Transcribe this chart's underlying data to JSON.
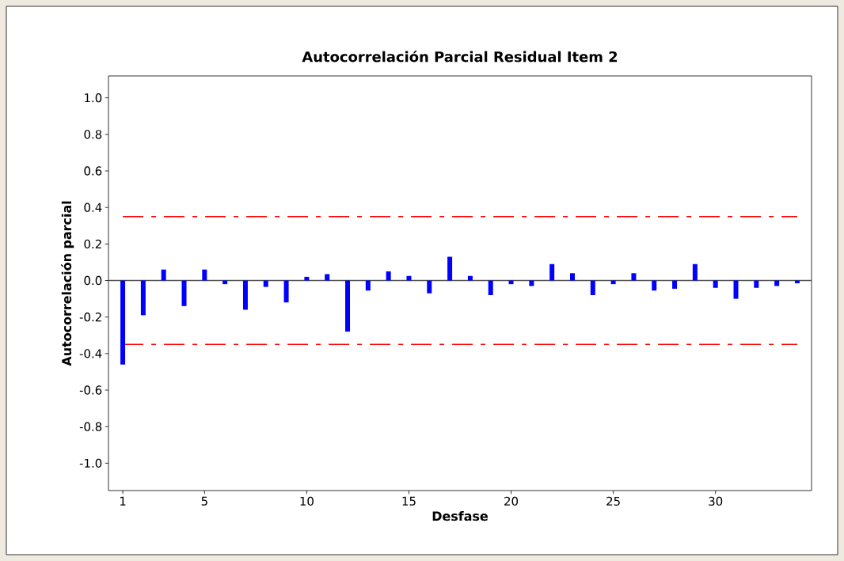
{
  "chart_data": {
    "type": "bar",
    "title": "Autocorrelación Parcial Residual Item 2",
    "xlabel": "Desfase",
    "ylabel": "Autocorrelación parcial",
    "x": [
      1,
      2,
      3,
      4,
      5,
      6,
      7,
      8,
      9,
      10,
      11,
      12,
      13,
      14,
      15,
      16,
      17,
      18,
      19,
      20,
      21,
      22,
      23,
      24,
      25,
      26,
      27,
      28,
      29,
      30,
      31,
      32,
      33,
      34
    ],
    "values": [
      -0.46,
      -0.19,
      0.06,
      -0.14,
      0.06,
      -0.02,
      -0.16,
      -0.035,
      -0.12,
      0.02,
      0.035,
      -0.28,
      -0.055,
      0.05,
      0.025,
      -0.07,
      0.13,
      0.025,
      -0.08,
      -0.02,
      -0.03,
      0.09,
      0.04,
      -0.08,
      -0.02,
      0.04,
      -0.055,
      -0.045,
      0.09,
      -0.04,
      -0.1,
      -0.04,
      -0.03,
      -0.015
    ],
    "color": "#0000ff",
    "xlim": [
      0.3,
      34.7
    ],
    "xticks": [
      1,
      5,
      10,
      15,
      20,
      25,
      30
    ],
    "ylim": [
      -1.15,
      1.12
    ],
    "yticks": [
      {
        "value": -1.0,
        "label": "-1.0"
      },
      {
        "value": -0.8,
        "label": "-0.8"
      },
      {
        "value": -0.6,
        "label": "-0.6"
      },
      {
        "value": -0.4,
        "label": "-0.4"
      },
      {
        "value": -0.2,
        "label": "-0.2"
      },
      {
        "value": 0.0,
        "label": "0.0"
      },
      {
        "value": 0.2,
        "label": "0.2"
      },
      {
        "value": 0.4,
        "label": "0.4"
      },
      {
        "value": 0.6,
        "label": "0.6"
      },
      {
        "value": 0.8,
        "label": "0.8"
      },
      {
        "value": 1.0,
        "label": "1.0"
      }
    ],
    "ref_lines": [
      {
        "axis": "y",
        "value": 0.35,
        "color": "#ff0000",
        "line_style": "dashdot"
      },
      {
        "axis": "y",
        "value": -0.35,
        "color": "#ff0000",
        "line_style": "dashdot"
      },
      {
        "axis": "y",
        "value": 0,
        "color": "#555555",
        "line_style": "solid"
      }
    ],
    "grid": false
  }
}
